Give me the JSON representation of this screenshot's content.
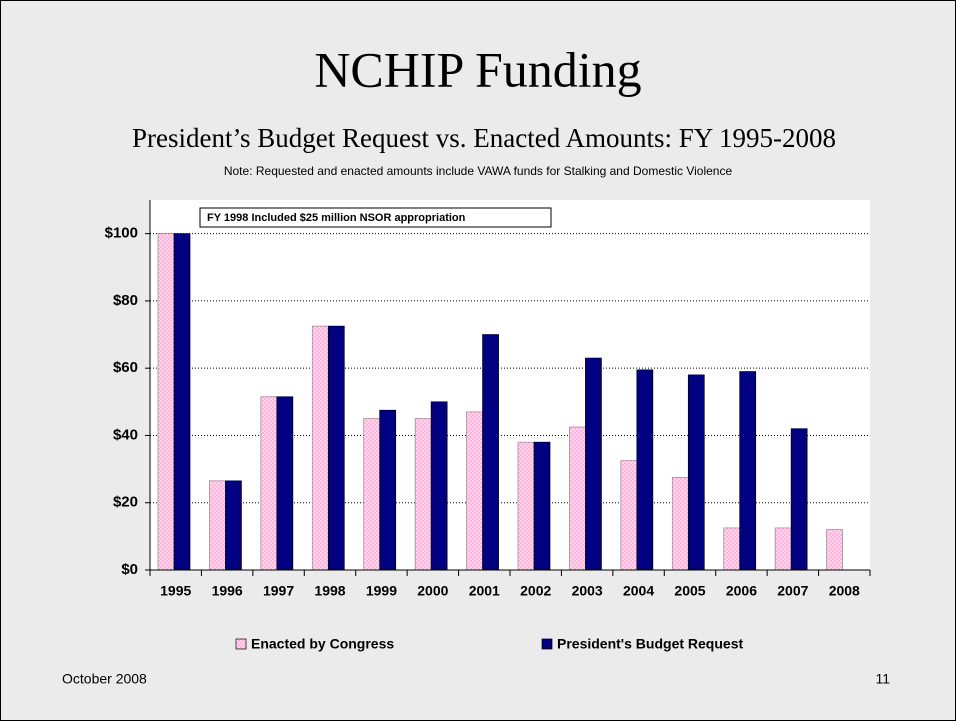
{
  "chart_data": {
    "type": "bar",
    "title": "NCHIP Funding",
    "subtitle": "President’s Budget Request vs. Enacted Amounts: FY 1995-2008",
    "note": "Note: Requested and enacted amounts include VAWA funds for Stalking and Domestic Violence",
    "annotation": "FY 1998 Included $25 million NSOR appropriation",
    "categories": [
      "1995",
      "1996",
      "1997",
      "1998",
      "1999",
      "2000",
      "2001",
      "2002",
      "2003",
      "2004",
      "2005",
      "2006",
      "2007",
      "2008"
    ],
    "series": [
      {
        "name": "Enacted by Congress",
        "color": "#ffb3dd",
        "values": [
          100,
          26.5,
          51.5,
          72.5,
          45,
          45,
          47,
          38,
          42.5,
          32.5,
          27.5,
          12.5,
          12.5,
          12
        ]
      },
      {
        "name": "President's Budget Request",
        "color": "#000080",
        "values": [
          100,
          26.5,
          51.5,
          72.5,
          47.5,
          50,
          70,
          38,
          63,
          59.5,
          58,
          59,
          42,
          null
        ]
      }
    ],
    "ylim": [
      0,
      110
    ],
    "yticks": [
      {
        "value": 0,
        "label": "$0"
      },
      {
        "value": 20,
        "label": "$20"
      },
      {
        "value": 40,
        "label": "$40"
      },
      {
        "value": 60,
        "label": "$60"
      },
      {
        "value": 80,
        "label": "$80"
      },
      {
        "value": 100,
        "label": "$100"
      }
    ],
    "grid": true,
    "legend": "bottom"
  },
  "footer": {
    "date": "October 2008",
    "page": "11"
  }
}
